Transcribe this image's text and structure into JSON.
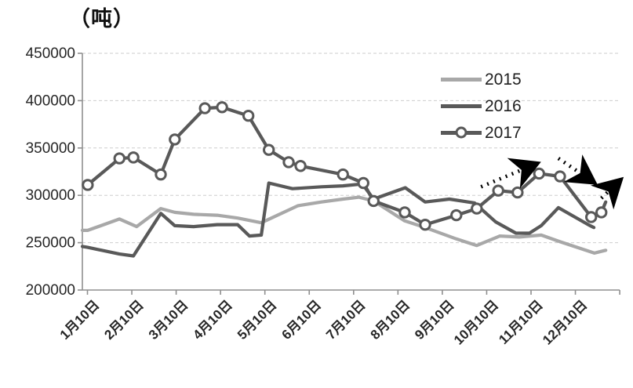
{
  "chart": {
    "unit_label": "（吨）",
    "colors": {
      "series_2015": "#a8a8a8",
      "series_2016": "#595959",
      "series_2017": "#595959",
      "axis": "#8f8f8f",
      "gridline": "#cdcdcd",
      "tick_text": "#262626",
      "annotation": "#000000",
      "background": "#ffffff"
    }
  },
  "legend": {
    "items": [
      {
        "label": "2015",
        "swatch": "plain-light-line"
      },
      {
        "label": "2016",
        "swatch": "plain-dark-line"
      },
      {
        "label": "2017",
        "swatch": "dark-line-with-circle-marker"
      }
    ]
  },
  "chart_data": {
    "type": "line",
    "title": "（吨）",
    "xlabel": "",
    "ylabel": "吨",
    "ylim": [
      200000,
      450000
    ],
    "y_ticks": [
      450000,
      400000,
      350000,
      300000,
      250000,
      200000
    ],
    "x_tick_labels": [
      "1月10日",
      "2月10日",
      "3月10日",
      "4月10日",
      "5月10日",
      "6月10日",
      "7月10日",
      "8月10日",
      "9月10日",
      "10月10日",
      "11月10日",
      "12月10日"
    ],
    "grid": "horizontal-dashed",
    "legend_position": "inside-top-right",
    "x_unit": "percent-of-axis (semimonthly points, Jan 10 - late Dec)",
    "series": [
      {
        "name": "2015",
        "color": "#a8a8a8",
        "marker": "none",
        "points": [
          [
            0,
            263000
          ],
          [
            1.0,
            263000
          ],
          [
            6.9,
            275000
          ],
          [
            10.1,
            267000
          ],
          [
            14.6,
            286000
          ],
          [
            17.2,
            282000
          ],
          [
            20.7,
            280000
          ],
          [
            25.1,
            279000
          ],
          [
            28.9,
            276000
          ],
          [
            33.3,
            271000
          ],
          [
            40.1,
            289000
          ],
          [
            44.5,
            293000
          ],
          [
            48.5,
            296000
          ],
          [
            51.5,
            298000
          ],
          [
            54.2,
            294000
          ],
          [
            60.0,
            273000
          ],
          [
            63.8,
            266000
          ],
          [
            69.6,
            254000
          ],
          [
            73.4,
            247000
          ],
          [
            77.7,
            257000
          ],
          [
            81.3,
            256000
          ],
          [
            85.4,
            258000
          ],
          [
            88.9,
            251000
          ],
          [
            95.3,
            239000
          ],
          [
            97.4,
            242000
          ]
        ]
      },
      {
        "name": "2016",
        "color": "#595959",
        "marker": "none",
        "points": [
          [
            0,
            246000
          ],
          [
            1.0,
            245000
          ],
          [
            6.9,
            238000
          ],
          [
            9.5,
            236000
          ],
          [
            14.6,
            281000
          ],
          [
            17.2,
            268000
          ],
          [
            20.7,
            267000
          ],
          [
            25.1,
            269000
          ],
          [
            28.9,
            269000
          ],
          [
            31.1,
            257000
          ],
          [
            33.3,
            258000
          ],
          [
            34.7,
            313000
          ],
          [
            39.1,
            307000
          ],
          [
            44.5,
            309000
          ],
          [
            48.5,
            310000
          ],
          [
            52.1,
            312000
          ],
          [
            54.2,
            296000
          ],
          [
            60.1,
            308000
          ],
          [
            63.8,
            293000
          ],
          [
            68.3,
            296000
          ],
          [
            73.0,
            292000
          ],
          [
            76.9,
            272000
          ],
          [
            80.7,
            260000
          ],
          [
            83.2,
            260000
          ],
          [
            85.4,
            268000
          ],
          [
            88.6,
            287000
          ],
          [
            94.5,
            268000
          ],
          [
            95.2,
            266000
          ]
        ]
      },
      {
        "name": "2017",
        "color": "#595959",
        "marker": "circle",
        "marker_fill": "#ffffff",
        "skip_last_marker": true,
        "points": [
          [
            1.0,
            311000
          ],
          [
            6.9,
            339000
          ],
          [
            9.5,
            340000
          ],
          [
            14.6,
            322000
          ],
          [
            17.2,
            359000
          ],
          [
            22.8,
            392000
          ],
          [
            26.0,
            393000
          ],
          [
            30.9,
            384000
          ],
          [
            34.7,
            348000
          ],
          [
            38.4,
            335000
          ],
          [
            40.6,
            331000
          ],
          [
            48.5,
            322000
          ],
          [
            52.3,
            313000
          ],
          [
            54.2,
            294000
          ],
          [
            60.0,
            282000
          ],
          [
            63.8,
            269000
          ],
          [
            69.6,
            279000
          ],
          [
            73.4,
            286000
          ],
          [
            77.4,
            305000
          ],
          [
            81.0,
            303000
          ],
          [
            85.0,
            323000
          ],
          [
            88.9,
            320000
          ],
          [
            94.7,
            277000
          ],
          [
            96.6,
            282000
          ],
          [
            97.4,
            293000
          ]
        ]
      }
    ],
    "annotations": {
      "trend_arrows": [
        {
          "style": "dotted",
          "direction": "up",
          "from": [
            74.2,
            309000
          ],
          "to": [
            84.8,
            334000
          ]
        },
        {
          "style": "dotted",
          "direction": "down",
          "from": [
            88.6,
            339000
          ],
          "to": [
            95.4,
            313000
          ]
        },
        {
          "style": "dotted",
          "direction": "up",
          "from": [
            96.6,
            297000
          ],
          "to": [
            100.3,
            317000
          ]
        }
      ]
    }
  }
}
